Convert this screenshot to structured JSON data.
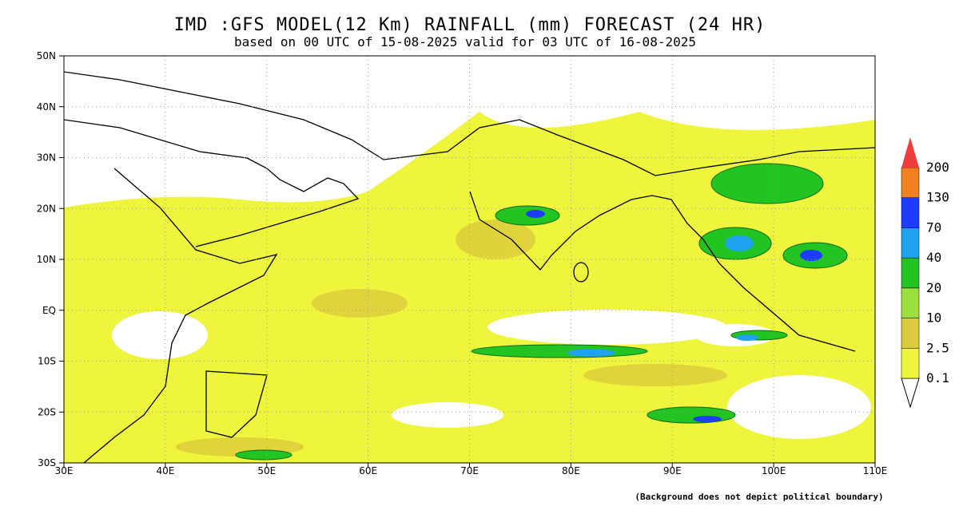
{
  "header": {
    "title": "IMD :GFS MODEL(12 Km) RAINFALL (mm) FORECAST (24 HR)",
    "subtitle": "based on 00 UTC of 15-08-2025 valid for 03 UTC of 16-08-2025"
  },
  "map": {
    "lat_labels": [
      "50N",
      "40N",
      "30N",
      "20N",
      "10N",
      "EQ",
      "10S",
      "20S",
      "30S"
    ],
    "lon_labels": [
      "30E",
      "40E",
      "50E",
      "60E",
      "70E",
      "80E",
      "90E",
      "100E",
      "110E"
    ]
  },
  "legend": {
    "levels": [
      {
        "value": 0.1,
        "color": "#eef53c"
      },
      {
        "value": 2.5,
        "color": "#dccb3c"
      },
      {
        "value": 10,
        "color": "#9be03c"
      },
      {
        "value": 20,
        "color": "#22c422"
      },
      {
        "value": 40,
        "color": "#1fa2f0"
      },
      {
        "value": 70,
        "color": "#1e3cff"
      },
      {
        "value": 130,
        "color": "#f08020"
      },
      {
        "value": 200,
        "color": "#f03c3c"
      }
    ]
  },
  "footnote": "(Background does not depict political boundary)"
}
